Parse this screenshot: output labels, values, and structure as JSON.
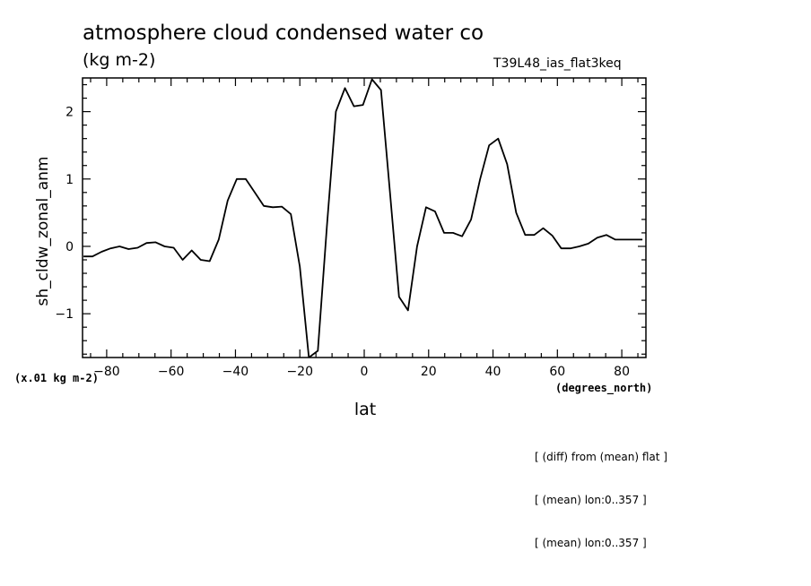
{
  "header": {
    "title": "atmosphere cloud condensed water co",
    "units": "(kg m-2)",
    "run": "T39L48_ias_flat3keq"
  },
  "annotations": {
    "scale_note": "(x.01 kg m-2)",
    "x_units": "(degrees_north)",
    "notes": [
      "[ (diff) from (mean) flat ]",
      "[ (mean) lon:0..357 ]",
      "[ (mean) lon:0..357 ]"
    ]
  },
  "chart_data": {
    "type": "line",
    "title": "atmosphere cloud condensed water co",
    "xlabel": "lat",
    "ylabel": "sh_cldw_zonal_anm",
    "xlim": [
      -87.5,
      87.5
    ],
    "ylim": [
      -1.65,
      2.5
    ],
    "xticks": [
      -80,
      -60,
      -40,
      -20,
      0,
      20,
      40,
      60,
      80
    ],
    "yticks": [
      -1,
      0,
      1,
      2
    ],
    "ytick_labels": [
      "−1",
      "0",
      "1",
      "2"
    ],
    "xtick_labels": [
      "−80",
      "−60",
      "−40",
      "−20",
      "0",
      "20",
      "40",
      "60",
      "80"
    ],
    "grid": false,
    "series": [
      {
        "x": [
          -87.2,
          -84.4,
          -81.6,
          -78.8,
          -76.0,
          -73.2,
          -70.4,
          -67.6,
          -64.8,
          -62.0,
          -59.2,
          -56.4,
          -53.6,
          -50.8,
          -48.0,
          -45.2,
          -42.4,
          -39.6,
          -36.8,
          -34.0,
          -31.2,
          -28.4,
          -25.6,
          -22.8,
          -20.0,
          -17.2,
          -14.4,
          -11.6,
          -8.8,
          -6.0,
          -3.2,
          -0.4,
          2.4,
          5.2,
          8.0,
          10.8,
          13.6,
          16.4,
          19.2,
          22.0,
          24.8,
          27.6,
          30.4,
          33.2,
          36.0,
          38.8,
          41.6,
          44.4,
          47.2,
          50.0,
          52.8,
          55.6,
          58.4,
          61.2,
          64.0,
          66.8,
          69.6,
          72.4,
          75.2,
          78.0,
          80.8,
          83.6,
          86.4
        ],
        "values": [
          -0.15,
          -0.15,
          -0.08,
          -0.03,
          0.0,
          -0.04,
          -0.02,
          0.05,
          0.06,
          0.0,
          -0.02,
          -0.2,
          -0.06,
          -0.2,
          -0.22,
          0.1,
          0.68,
          1.0,
          1.0,
          0.8,
          0.6,
          0.58,
          0.59,
          0.48,
          -0.3,
          -1.65,
          -1.55,
          0.3,
          2.0,
          2.35,
          2.08,
          2.1,
          2.48,
          2.32,
          0.8,
          -0.75,
          -0.95,
          0.0,
          0.58,
          0.52,
          0.2,
          0.2,
          0.15,
          0.4,
          1.0,
          1.5,
          1.6,
          1.22,
          0.5,
          0.17,
          0.17,
          0.27,
          0.16,
          -0.03,
          -0.03,
          0.0,
          0.04,
          0.13,
          0.17,
          0.1,
          0.1,
          0.1,
          0.1
        ]
      }
    ]
  }
}
